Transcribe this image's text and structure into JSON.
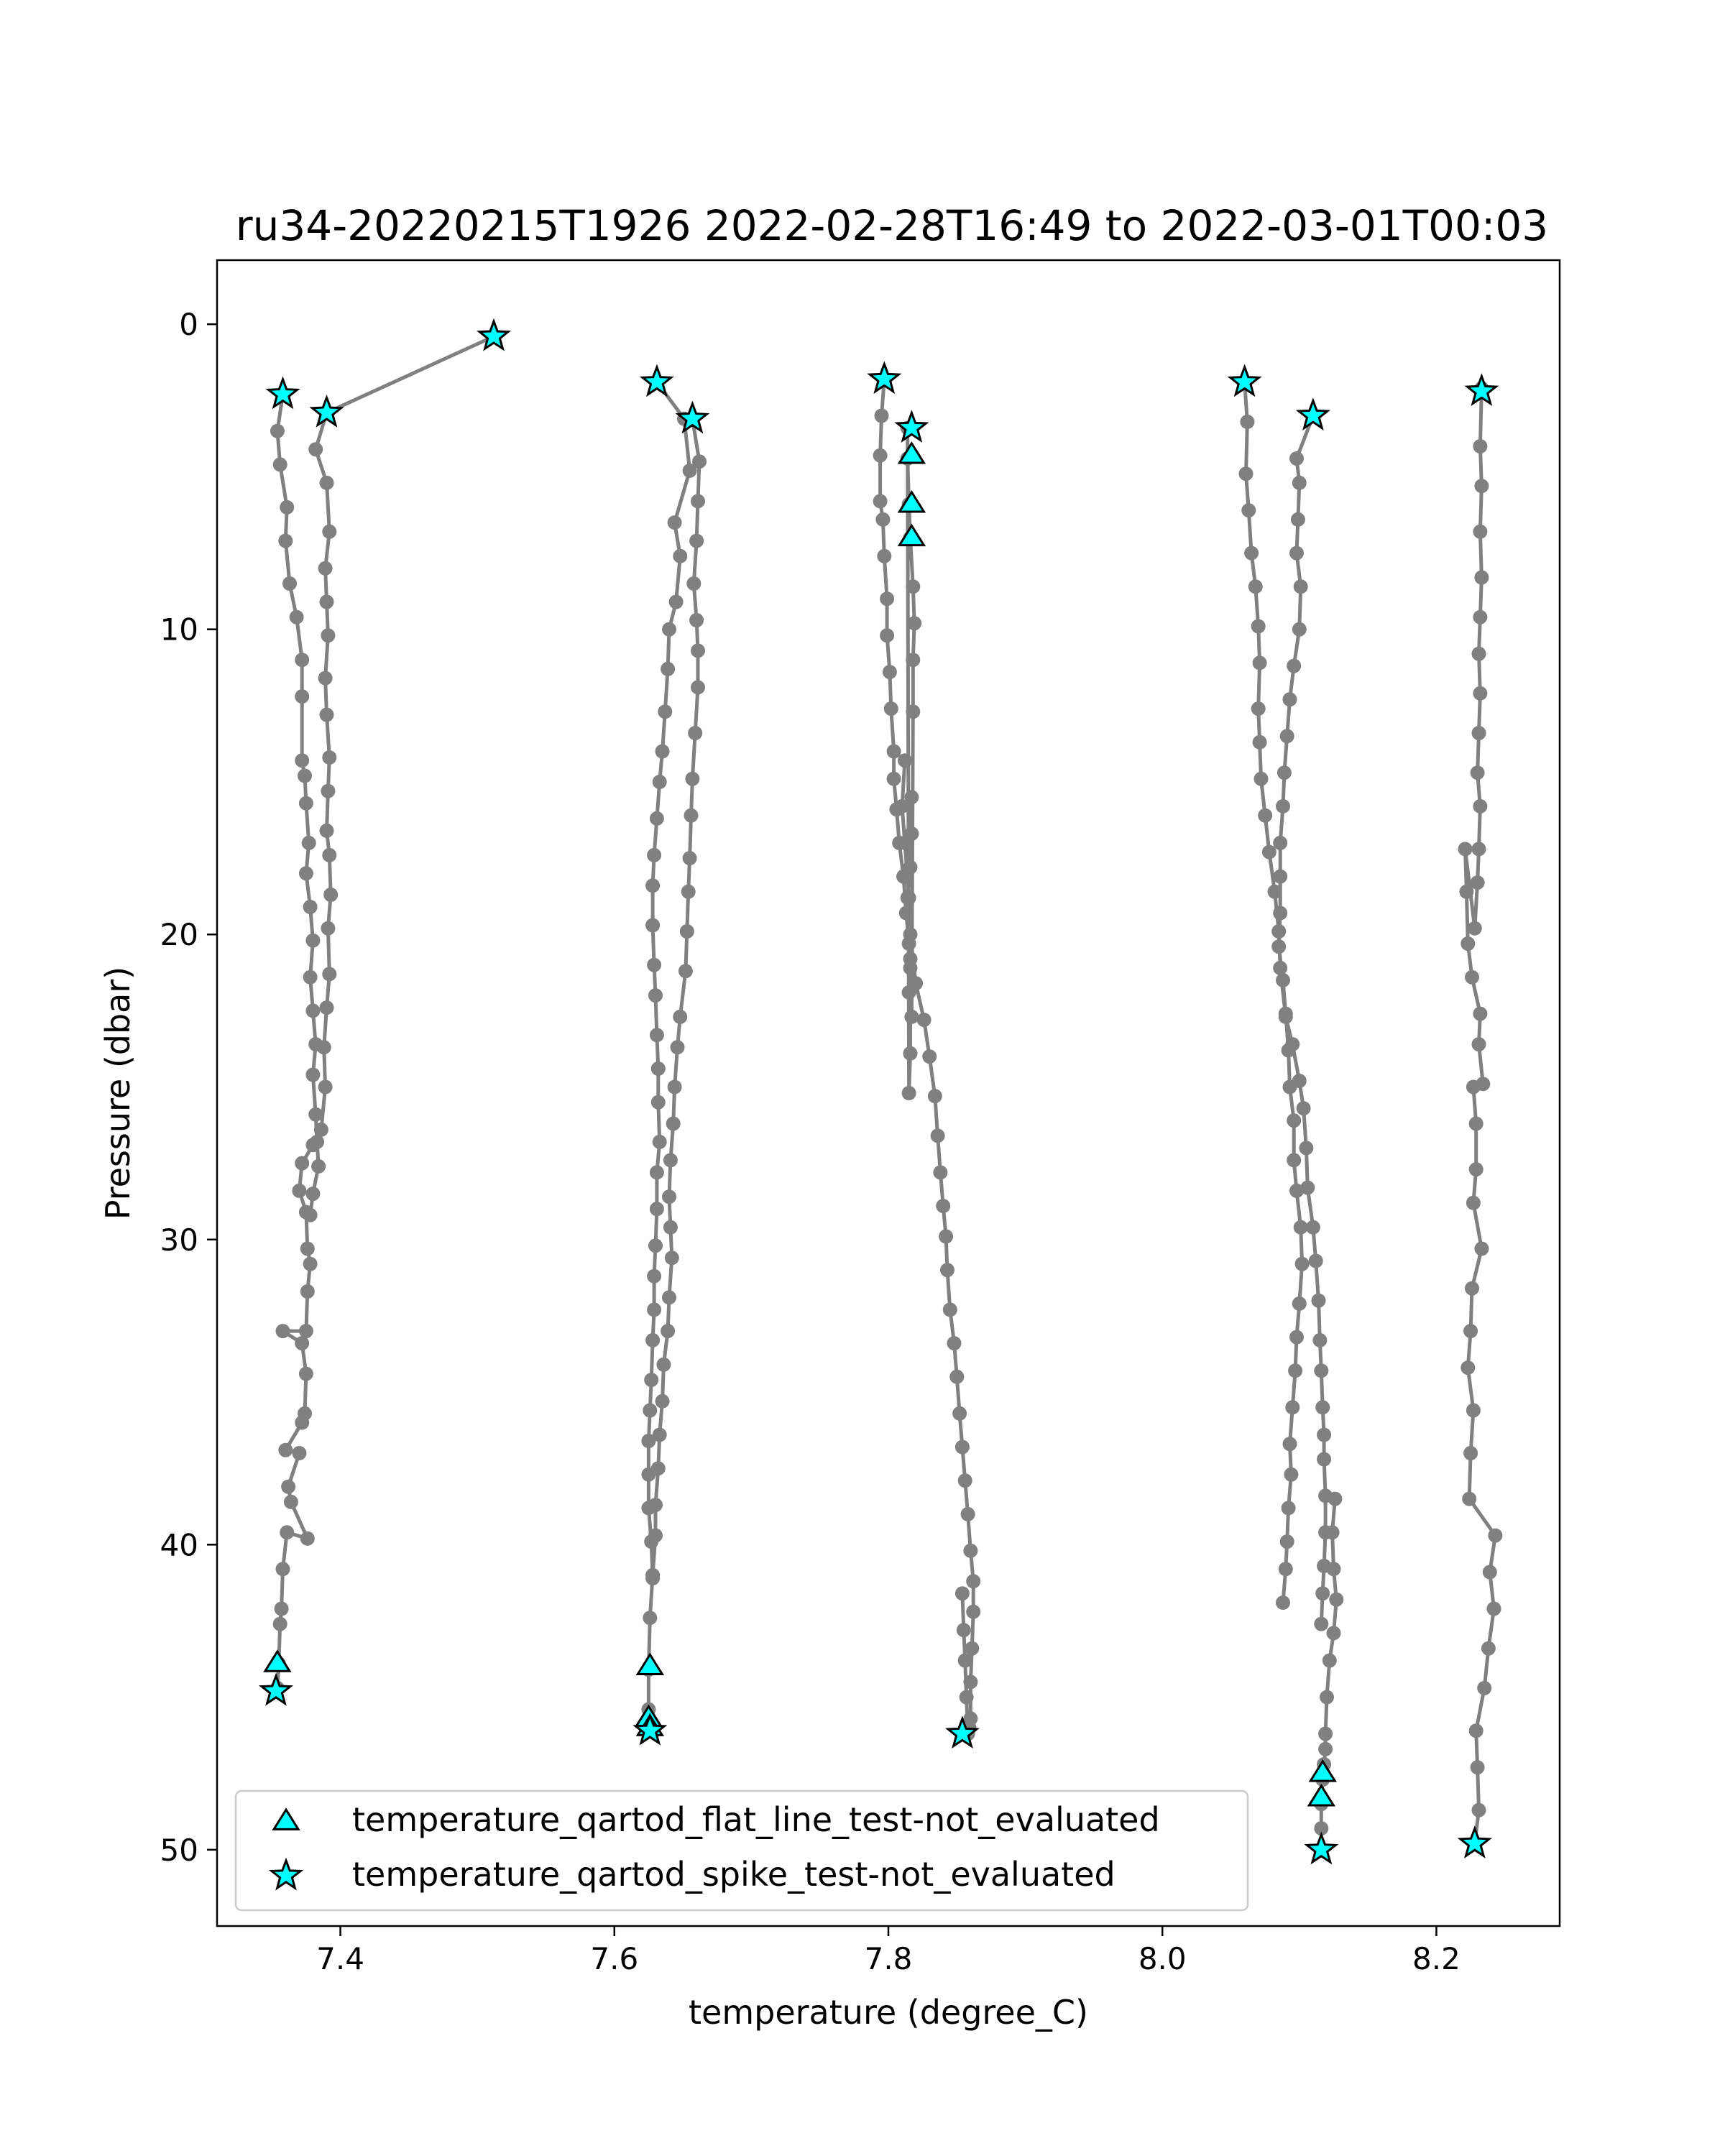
{
  "chart_data": {
    "type": "line",
    "title": "ru34-20220215T1926 2022-02-28T16:49 to 2022-03-01T00:03",
    "xlabel": "temperature (degree_C)",
    "ylabel": "Pressure (dbar)",
    "xlim": [
      7.31,
      8.29
    ],
    "ylim": [
      52.5,
      -2.1
    ],
    "xticks": [
      7.4,
      7.6,
      7.8,
      8.0,
      8.2
    ],
    "xtick_labels": [
      "7.4",
      "7.6",
      "7.8",
      "8.0",
      "8.2"
    ],
    "yticks": [
      0,
      10,
      20,
      30,
      40,
      50
    ],
    "ytick_labels": [
      "0",
      "10",
      "20",
      "30",
      "40",
      "50"
    ],
    "grid": false,
    "legend_position": "lower-left",
    "colors": {
      "line": "#808080",
      "marker_fill": "#00ffff",
      "marker_edge": "#000000"
    },
    "series": [
      {
        "x": [
          7.512,
          7.39,
          7.382,
          7.39,
          7.392,
          7.389,
          7.39,
          7.391,
          7.389,
          7.39,
          7.392,
          7.391,
          7.39,
          7.392,
          7.393,
          7.391,
          7.392,
          7.39,
          7.388,
          7.389,
          7.386,
          7.38,
          7.372,
          7.37,
          7.375,
          7.376,
          7.378,
          7.376,
          7.375,
          7.358,
          7.372,
          7.375,
          7.374,
          7.372,
          7.36,
          7.37,
          7.362,
          7.364,
          7.376,
          7.361,
          7.358,
          7.357,
          7.356,
          7.355,
          7.354
        ],
        "y": [
          0.4,
          2.9,
          4.1,
          5.2,
          6.8,
          8.0,
          9.1,
          10.2,
          11.6,
          12.8,
          14.2,
          15.3,
          16.6,
          17.4,
          18.7,
          19.8,
          21.3,
          22.4,
          23.7,
          25.0,
          26.4,
          26.9,
          27.5,
          28.4,
          29.1,
          30.3,
          30.8,
          31.7,
          33.0,
          33.0,
          33.4,
          34.4,
          35.7,
          36.0,
          36.9,
          37.0,
          38.1,
          38.6,
          39.8,
          39.6,
          40.8,
          42.1,
          42.6,
          43.9,
          44.7
        ]
      },
      {
        "x": [
          7.358,
          7.354,
          7.356,
          7.361,
          7.36,
          7.363,
          7.368,
          7.372,
          7.372,
          7.372,
          7.374,
          7.375,
          7.377,
          7.375,
          7.378,
          7.38,
          7.378,
          7.38,
          7.382,
          7.38,
          7.382,
          7.383,
          7.384,
          7.38,
          7.378
        ],
        "y": [
          2.3,
          3.5,
          4.6,
          6.0,
          7.1,
          8.5,
          9.6,
          11.0,
          12.2,
          14.3,
          14.8,
          15.7,
          17.0,
          18.0,
          19.1,
          20.2,
          21.4,
          22.5,
          23.6,
          24.6,
          25.9,
          26.8,
          27.6,
          28.5,
          29.2
        ]
      },
      {
        "x": [
          7.631,
          7.651,
          7.655,
          7.644,
          7.648,
          7.645,
          7.64,
          7.639,
          7.637,
          7.635,
          7.633,
          7.631,
          7.629,
          7.628,
          7.628,
          7.629,
          7.63,
          7.631,
          7.632,
          7.632,
          7.633,
          7.631,
          7.631,
          7.63,
          7.629,
          7.629,
          7.628,
          7.627,
          7.626,
          7.625,
          7.625,
          7.625,
          7.627,
          7.628
        ],
        "y": [
          1.9,
          3.1,
          4.8,
          6.5,
          7.6,
          9.1,
          10.0,
          11.3,
          12.7,
          14.0,
          15.0,
          16.2,
          17.4,
          18.4,
          19.7,
          21.0,
          22.0,
          23.3,
          24.4,
          25.5,
          26.8,
          27.8,
          29.0,
          30.2,
          31.2,
          32.3,
          33.3,
          34.6,
          35.6,
          36.6,
          37.7,
          38.8,
          39.9,
          41.1
        ]
      },
      {
        "x": [
          7.657,
          7.662,
          7.661,
          7.66,
          7.658,
          7.66,
          7.661,
          7.661,
          7.659,
          7.657,
          7.656,
          7.655,
          7.654,
          7.653,
          7.652,
          7.648,
          7.646,
          7.644,
          7.643,
          7.641,
          7.64,
          7.641,
          7.642,
          7.64,
          7.639,
          7.636,
          7.635,
          7.633,
          7.632,
          7.63,
          7.63,
          7.628,
          7.626,
          7.625,
          7.625
        ],
        "y": [
          3.1,
          4.5,
          5.8,
          7.1,
          8.5,
          9.7,
          10.7,
          11.9,
          13.4,
          14.9,
          16.1,
          17.5,
          18.6,
          19.9,
          21.2,
          22.7,
          23.7,
          25.0,
          26.2,
          27.4,
          28.6,
          29.6,
          30.6,
          31.9,
          33.0,
          34.1,
          35.3,
          36.4,
          37.5,
          38.7,
          39.7,
          41.0,
          42.4,
          44.1,
          45.4
        ]
      },
      {
        "x": [
          7.797,
          7.795,
          7.794,
          7.794,
          7.796,
          7.797,
          7.799,
          7.799,
          7.801,
          7.802,
          7.804,
          7.804,
          7.806,
          7.808,
          7.811,
          7.813,
          7.815,
          7.816,
          7.815,
          7.817,
          7.818,
          7.818,
          7.819,
          7.818,
          7.816,
          7.815,
          7.814,
          7.814,
          7.815,
          7.816,
          7.816,
          7.814,
          7.816,
          7.817,
          7.817
        ],
        "y": [
          1.8,
          3.0,
          4.3,
          5.8,
          6.4,
          7.6,
          9.0,
          10.2,
          11.4,
          12.6,
          14.0,
          14.9,
          15.9,
          17.0,
          18.1,
          19.3,
          20.3,
          21.1,
          21.9,
          22.7,
          12.7,
          11.0,
          9.8,
          8.6,
          7.0,
          5.9,
          4.4,
          3.4,
          25.2,
          23.9,
          20.8,
          18.8,
          17.8,
          16.7,
          15.5
        ]
      },
      {
        "x": [
          7.812,
          7.81,
          7.812,
          7.815,
          7.816,
          7.82,
          7.826,
          7.83,
          7.834,
          7.836,
          7.838,
          7.84,
          7.842,
          7.843,
          7.845,
          7.848,
          7.85,
          7.852,
          7.854,
          7.856,
          7.858,
          7.86,
          7.862,
          7.862,
          7.861,
          7.86,
          7.86,
          7.859,
          7.858,
          7.857,
          7.856,
          7.855,
          7.854
        ],
        "y": [
          14.3,
          15.8,
          17.0,
          18.8,
          20.0,
          21.6,
          22.8,
          24.0,
          25.3,
          26.6,
          27.8,
          28.9,
          29.9,
          31.0,
          32.3,
          33.4,
          34.5,
          35.7,
          36.8,
          37.9,
          39.0,
          40.2,
          41.2,
          42.2,
          43.4,
          44.5,
          45.7,
          46.0,
          46.2,
          45.0,
          43.8,
          42.8,
          41.6
        ]
      },
      {
        "x": [
          8.06,
          8.062,
          8.061,
          8.063,
          8.065,
          8.068,
          8.07,
          8.071,
          8.07,
          8.071,
          8.072,
          8.075,
          8.078,
          8.082,
          8.085,
          8.086,
          8.09,
          8.095,
          8.1,
          8.103,
          8.105,
          8.106,
          8.11,
          8.112,
          8.114,
          8.115,
          8.116,
          8.117,
          8.118,
          8.118,
          8.119,
          8.119,
          8.118,
          8.117,
          8.116
        ],
        "y": [
          1.9,
          3.2,
          4.9,
          6.1,
          7.5,
          8.6,
          9.9,
          11.1,
          12.6,
          13.7,
          14.9,
          16.1,
          17.3,
          18.6,
          19.9,
          21.1,
          22.7,
          23.6,
          24.8,
          25.7,
          27.0,
          28.3,
          29.6,
          30.7,
          32.0,
          33.3,
          34.3,
          35.5,
          36.4,
          37.2,
          38.4,
          39.6,
          40.7,
          41.6,
          42.6
        ]
      },
      {
        "x": [
          8.11,
          8.098,
          8.1,
          8.099,
          8.098,
          8.101,
          8.1,
          8.096,
          8.093,
          8.091,
          8.089,
          8.088,
          8.086,
          8.086,
          8.086,
          8.085,
          8.088,
          8.09,
          8.092,
          8.093,
          8.096,
          8.096,
          8.098,
          8.101,
          8.102,
          8.1,
          8.098,
          8.097,
          8.095,
          8.093,
          8.094,
          8.092,
          8.091,
          8.09,
          8.088
        ],
        "y": [
          3.0,
          4.4,
          5.2,
          6.4,
          7.5,
          8.6,
          10.0,
          11.2,
          12.3,
          13.5,
          14.7,
          15.8,
          17.0,
          18.1,
          19.3,
          20.4,
          21.5,
          22.6,
          23.8,
          25.0,
          26.1,
          27.4,
          28.4,
          29.6,
          30.8,
          32.1,
          33.2,
          34.3,
          35.5,
          36.7,
          37.7,
          38.8,
          39.9,
          40.8,
          41.9
        ]
      },
      {
        "x": [
          8.126,
          8.124,
          8.125,
          8.127,
          8.125,
          8.122,
          8.12,
          8.119,
          8.119,
          8.118,
          8.117,
          8.116,
          8.116
        ],
        "y": [
          38.5,
          39.6,
          40.8,
          41.8,
          42.9,
          43.8,
          45.0,
          46.2,
          46.7,
          47.2,
          47.7,
          48.5,
          49.3
        ]
      },
      {
        "x": [
          8.233,
          8.232,
          8.233,
          8.232,
          8.233,
          8.232,
          8.231,
          8.232,
          8.231,
          8.23,
          8.232,
          8.231,
          8.23,
          8.228,
          8.221,
          8.222,
          8.223,
          8.226,
          8.232,
          8.231,
          8.234,
          8.227,
          8.229,
          8.229,
          8.227,
          8.233,
          8.226,
          8.225,
          8.223,
          8.227,
          8.225,
          8.224,
          8.243,
          8.239,
          8.242,
          8.238,
          8.235,
          8.229,
          8.23,
          8.231,
          8.228
        ],
        "y": [
          2.1,
          4.0,
          5.3,
          6.8,
          8.3,
          9.6,
          10.8,
          12.1,
          13.4,
          14.7,
          15.8,
          17.2,
          18.3,
          19.8,
          17.2,
          18.6,
          20.3,
          21.4,
          22.6,
          23.6,
          24.9,
          25.0,
          26.2,
          27.7,
          28.8,
          30.3,
          31.6,
          33.0,
          34.2,
          35.6,
          37.0,
          38.5,
          39.7,
          40.9,
          42.1,
          43.4,
          44.7,
          46.1,
          47.3,
          48.7,
          49.8
        ]
      }
    ],
    "markers": {
      "flat_line_not_evaluated": [
        {
          "x": 7.354,
          "y": 43.9
        },
        {
          "x": 7.626,
          "y": 44.0
        },
        {
          "x": 7.625,
          "y": 45.7
        },
        {
          "x": 7.626,
          "y": 46.0
        },
        {
          "x": 7.817,
          "y": 4.3
        },
        {
          "x": 7.817,
          "y": 5.9
        },
        {
          "x": 7.817,
          "y": 7.0
        },
        {
          "x": 8.117,
          "y": 47.5
        },
        {
          "x": 8.116,
          "y": 48.3
        }
      ],
      "spike_not_evaluated": [
        {
          "x": 7.512,
          "y": 0.4
        },
        {
          "x": 7.358,
          "y": 2.3
        },
        {
          "x": 7.39,
          "y": 2.9
        },
        {
          "x": 7.353,
          "y": 44.8
        },
        {
          "x": 7.631,
          "y": 1.9
        },
        {
          "x": 7.657,
          "y": 3.1
        },
        {
          "x": 7.626,
          "y": 46.1
        },
        {
          "x": 7.797,
          "y": 1.8
        },
        {
          "x": 7.817,
          "y": 3.4
        },
        {
          "x": 7.854,
          "y": 46.2
        },
        {
          "x": 8.06,
          "y": 1.9
        },
        {
          "x": 8.11,
          "y": 3.0
        },
        {
          "x": 8.116,
          "y": 50.0
        },
        {
          "x": 8.233,
          "y": 2.2
        },
        {
          "x": 8.228,
          "y": 49.8
        }
      ]
    },
    "legend": [
      {
        "label": "temperature_qartod_flat_line_test-not_evaluated",
        "marker": "triangle"
      },
      {
        "label": "temperature_qartod_spike_test-not_evaluated",
        "marker": "star"
      }
    ]
  }
}
